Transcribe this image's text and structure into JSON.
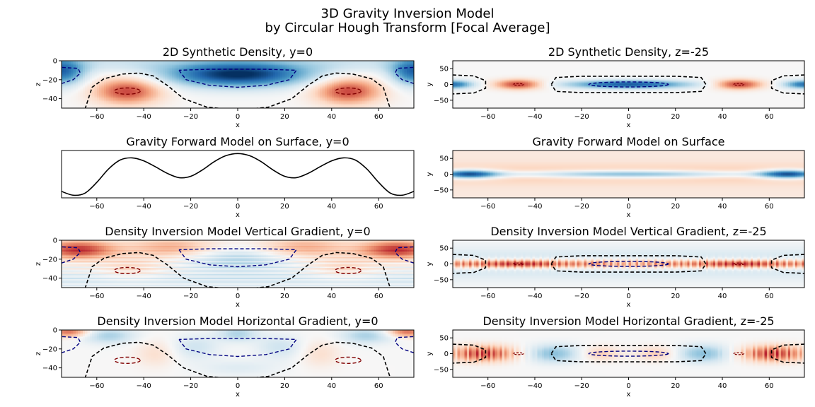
{
  "suptitle": {
    "line1": "3D Gravity Inversion Model",
    "line2": "by Circular Hough Transform [Focal Average]"
  },
  "colors": {
    "cmap_negative": "#08306b",
    "cmap_mid": "#f7f7f7",
    "cmap_positive": "#67001f",
    "contour_outer": "#000000",
    "contour_blue": "#000080",
    "contour_red": "#800000",
    "line": "#000000"
  },
  "chart_data": [
    {
      "id": "p1",
      "type": "heatmap",
      "title": "2D Synthetic Density, y=0",
      "xlabel": "x",
      "ylabel": "z",
      "xlim": [
        -75,
        75
      ],
      "ylim": [
        -50,
        0
      ],
      "xticks": [
        -60,
        -40,
        -20,
        0,
        20,
        40,
        60
      ],
      "yticks": [
        0,
        -20,
        -40
      ],
      "field": "synthetic_section",
      "contours": "section"
    },
    {
      "id": "p2",
      "type": "heatmap",
      "title": "2D Synthetic Density, z=-25",
      "xlabel": "x",
      "ylabel": "y",
      "xlim": [
        -75,
        75
      ],
      "ylim": [
        -75,
        75
      ],
      "xticks": [
        -60,
        -40,
        -20,
        0,
        20,
        40,
        60
      ],
      "yticks": [
        50,
        0,
        -50
      ],
      "field": "synthetic_plan",
      "contours": "plan"
    },
    {
      "id": "p3",
      "type": "line",
      "title": "Gravity Forward Model on Surface, y=0",
      "xlabel": "x",
      "ylabel": "",
      "xlim": [
        -75,
        75
      ],
      "xticks": [
        -60,
        -40,
        -20,
        0,
        20,
        40,
        60
      ],
      "yticks": [],
      "x": [
        -75,
        -70,
        -65,
        -60,
        -55,
        -50,
        -45,
        -40,
        -35,
        -30,
        -25,
        -20,
        -15,
        -10,
        -5,
        0,
        5,
        10,
        15,
        20,
        25,
        30,
        35,
        40,
        45,
        50,
        55,
        60,
        65,
        70,
        75
      ],
      "y": [
        0.1,
        0.01,
        0.06,
        0.31,
        0.62,
        0.83,
        0.88,
        0.81,
        0.67,
        0.52,
        0.42,
        0.45,
        0.6,
        0.79,
        0.93,
        0.98,
        0.93,
        0.79,
        0.6,
        0.45,
        0.42,
        0.52,
        0.67,
        0.81,
        0.88,
        0.83,
        0.62,
        0.31,
        0.06,
        0.01,
        0.1
      ],
      "ylim": [
        -0.05,
        1.05
      ]
    },
    {
      "id": "p4",
      "type": "heatmap",
      "title": "Gravity Forward Model on Surface",
      "xlabel": "x",
      "ylabel": "y",
      "xlim": [
        -75,
        75
      ],
      "ylim": [
        -75,
        75
      ],
      "xticks": [
        -60,
        -40,
        -20,
        0,
        20,
        40,
        60
      ],
      "yticks": [
        50,
        0,
        -50
      ],
      "field": "gravity_plan",
      "contours": "none"
    },
    {
      "id": "p5",
      "type": "heatmap",
      "title": "Density Inversion Model Vertical Gradient, y=0",
      "xlabel": "x",
      "ylabel": "z",
      "xlim": [
        -75,
        75
      ],
      "ylim": [
        -50,
        0
      ],
      "xticks": [
        -60,
        -40,
        -20,
        0,
        20,
        40,
        60
      ],
      "yticks": [
        0,
        -20,
        -40
      ],
      "field": "vgrad_section",
      "contours": "section"
    },
    {
      "id": "p6",
      "type": "heatmap",
      "title": "Density Inversion Model Vertical Gradient, z=-25",
      "xlabel": "x",
      "ylabel": "y",
      "xlim": [
        -75,
        75
      ],
      "ylim": [
        -75,
        75
      ],
      "xticks": [
        -60,
        -40,
        -20,
        0,
        20,
        40,
        60
      ],
      "yticks": [
        50,
        0,
        -50
      ],
      "field": "vgrad_plan",
      "contours": "plan"
    },
    {
      "id": "p7",
      "type": "heatmap",
      "title": "Density Inversion Model Horizontal Gradient, y=0",
      "xlabel": "x",
      "ylabel": "z",
      "xlim": [
        -75,
        75
      ],
      "ylim": [
        -50,
        0
      ],
      "xticks": [
        -60,
        -40,
        -20,
        0,
        20,
        40,
        60
      ],
      "yticks": [
        0,
        -20,
        -40
      ],
      "field": "hgrad_section",
      "contours": "section"
    },
    {
      "id": "p8",
      "type": "heatmap",
      "title": "Density Inversion Model Horizontal Gradient, z=-25",
      "xlabel": "x",
      "ylabel": "y",
      "xlim": [
        -75,
        75
      ],
      "ylim": [
        -75,
        75
      ],
      "xticks": [
        -60,
        -40,
        -20,
        0,
        20,
        40,
        60
      ],
      "yticks": [
        50,
        0,
        -50
      ],
      "field": "hgrad_plan",
      "contours": "plan"
    }
  ]
}
